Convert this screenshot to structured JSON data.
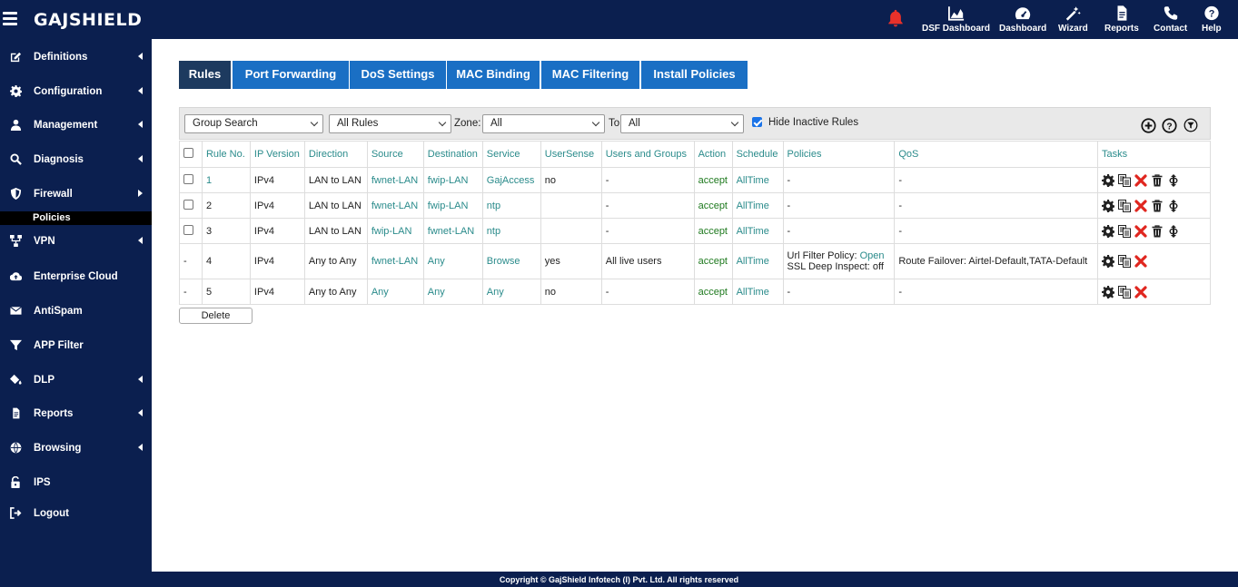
{
  "header": {
    "logo": "GAJSHIELD",
    "nav": [
      {
        "label": "DSF Dashboard",
        "icon": "area-chart-icon"
      },
      {
        "label": "Dashboard",
        "icon": "gauge-icon"
      },
      {
        "label": "Wizard",
        "icon": "magic-wand-icon"
      },
      {
        "label": "Reports",
        "icon": "document-icon"
      },
      {
        "label": "Contact",
        "icon": "phone-icon"
      },
      {
        "label": "Help",
        "icon": "question-circle-icon"
      }
    ],
    "colors": {
      "bar": "#0b1f4f",
      "bell": "#e8312a"
    }
  },
  "sidebar": {
    "items": [
      {
        "label": "Definitions",
        "icon": "edit-icon",
        "caret": "left"
      },
      {
        "label": "Configuration",
        "icon": "gear-icon",
        "caret": "left"
      },
      {
        "label": "Management",
        "icon": "user-icon",
        "caret": "left"
      },
      {
        "label": "Diagnosis",
        "icon": "search-icon",
        "caret": "left"
      },
      {
        "label": "Firewall",
        "icon": "shield-icon",
        "caret": "right"
      },
      {
        "label": "VPN",
        "icon": "network-icon",
        "caret": "left"
      },
      {
        "label": "Enterprise Cloud",
        "icon": "cloud-upload-icon",
        "caret": ""
      },
      {
        "label": "AntiSpam",
        "icon": "envelope-icon",
        "caret": ""
      },
      {
        "label": "APP Filter",
        "icon": "filter-icon",
        "caret": ""
      },
      {
        "label": "DLP",
        "icon": "paint-bucket-icon",
        "caret": "left"
      },
      {
        "label": "Reports",
        "icon": "document-icon",
        "caret": "left"
      },
      {
        "label": "Browsing",
        "icon": "globe-icon",
        "caret": "left"
      },
      {
        "label": "IPS",
        "icon": "unlock-icon",
        "caret": ""
      },
      {
        "label": "Logout",
        "icon": "sign-out-icon",
        "caret": ""
      }
    ],
    "active_sub": "Policies"
  },
  "tabs": [
    {
      "label": "Rules",
      "active": true
    },
    {
      "label": "Port Forwarding",
      "active": false
    },
    {
      "label": "DoS Settings",
      "active": false
    },
    {
      "label": "MAC Binding",
      "active": false
    },
    {
      "label": "MAC Filtering",
      "active": false
    },
    {
      "label": "Install Policies",
      "active": false
    }
  ],
  "filters": {
    "group_search": "Group Search",
    "rule_type": "All Rules",
    "zone_label": "Zone:",
    "zone_value": "All",
    "to_label": "To",
    "to_value": "All",
    "hide_inactive_label": "Hide Inactive Rules",
    "hide_inactive_checked": true
  },
  "table": {
    "columns": [
      "Rule No.",
      "IP Version",
      "Direction",
      "Source",
      "Destination",
      "Service",
      "UserSense",
      "Users and Groups",
      "Action",
      "Schedule",
      "Policies",
      "QoS",
      "Tasks"
    ],
    "rows": [
      {
        "select": "checkbox",
        "rule_no": "1",
        "ip": "IPv4",
        "direction": "LAN to LAN",
        "source": "fwnet-LAN",
        "destination": "fwip-LAN",
        "service": "GajAccess",
        "usersense": "no",
        "users": "-",
        "action": "accept",
        "schedule": "AllTime",
        "policies": "-",
        "policies2": "",
        "policies_link": "",
        "qos": "-",
        "tasks": [
          "gear-icon",
          "copy-icon",
          "delete-x-icon",
          "trash-icon",
          "move-icon"
        ]
      },
      {
        "select": "checkbox",
        "rule_no": "2",
        "ip": "IPv4",
        "direction": "LAN to LAN",
        "source": "fwnet-LAN",
        "destination": "fwip-LAN",
        "service": "ntp",
        "usersense": "",
        "users": "-",
        "action": "accept",
        "schedule": "AllTime",
        "policies": "-",
        "policies2": "",
        "policies_link": "",
        "qos": "-",
        "tasks": [
          "gear-icon",
          "copy-icon",
          "delete-x-icon",
          "trash-icon",
          "move-icon"
        ]
      },
      {
        "select": "checkbox",
        "rule_no": "3",
        "ip": "IPv4",
        "direction": "LAN to LAN",
        "source": "fwip-LAN",
        "destination": "fwnet-LAN",
        "service": "ntp",
        "usersense": "",
        "users": "-",
        "action": "accept",
        "schedule": "AllTime",
        "policies": "-",
        "policies2": "",
        "policies_link": "",
        "qos": "-",
        "tasks": [
          "gear-icon",
          "copy-icon",
          "delete-x-icon",
          "trash-icon",
          "move-icon"
        ]
      },
      {
        "select": "-",
        "rule_no": "4",
        "ip": "IPv4",
        "direction": "Any to Any",
        "source": "fwnet-LAN",
        "destination": "Any",
        "service": "Browse",
        "usersense": "yes",
        "users": "All live users",
        "action": "accept",
        "schedule": "AllTime",
        "policies": "Url Filter Policy: ",
        "policies_link": "Open",
        "policies2": "SSL Deep Inspect: off",
        "qos": "Route Failover: Airtel-Default,TATA-Default",
        "tasks": [
          "gear-icon",
          "copy-icon",
          "delete-x-icon"
        ]
      },
      {
        "select": "-",
        "rule_no": "5",
        "ip": "IPv4",
        "direction": "Any to Any",
        "source": "Any",
        "destination": "Any",
        "service": "Any",
        "usersense": "no",
        "users": "-",
        "action": "accept",
        "schedule": "AllTime",
        "policies": "-",
        "policies2": "",
        "policies_link": "",
        "qos": "-",
        "tasks": [
          "gear-icon",
          "copy-icon",
          "delete-x-icon"
        ]
      }
    ]
  },
  "delete_button": "Delete",
  "footer": "Copyright © GajShield Infotech (I) Pvt. Ltd. All rights reserved"
}
